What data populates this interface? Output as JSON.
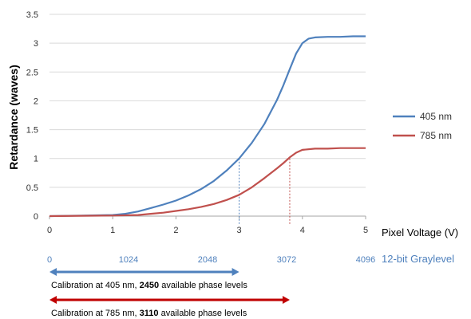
{
  "chart_data": {
    "type": "line",
    "xlabel": "Pixel Voltage (V)",
    "ylabel": "Retardance (waves)",
    "xlim": [
      0,
      5
    ],
    "ylim": [
      0,
      3.5
    ],
    "x_ticks": [
      "0",
      "1",
      "2",
      "3",
      "4",
      "5"
    ],
    "y_ticks": [
      "0",
      "0.5",
      "1",
      "1.5",
      "2",
      "2.5",
      "3",
      "3.5"
    ],
    "grid": "horizontal",
    "legend_position": "right",
    "series": [
      {
        "name": "405 nm",
        "color": "#4f81bd",
        "x": [
          0,
          0.5,
          1.0,
          1.2,
          1.4,
          1.6,
          1.8,
          2.0,
          2.2,
          2.4,
          2.6,
          2.8,
          3.0,
          3.2,
          3.4,
          3.6,
          3.7,
          3.8,
          3.9,
          4.0,
          4.1,
          4.2,
          4.4,
          4.6,
          4.8,
          5.0
        ],
        "y": [
          0,
          0.01,
          0.02,
          0.04,
          0.08,
          0.14,
          0.2,
          0.27,
          0.36,
          0.47,
          0.61,
          0.79,
          1.0,
          1.27,
          1.6,
          2.02,
          2.27,
          2.55,
          2.82,
          3.0,
          3.08,
          3.1,
          3.11,
          3.11,
          3.12,
          3.12
        ]
      },
      {
        "name": "785 nm",
        "color": "#c0504d",
        "x": [
          0,
          0.5,
          1.0,
          1.4,
          1.6,
          1.8,
          2.0,
          2.2,
          2.4,
          2.6,
          2.8,
          3.0,
          3.2,
          3.4,
          3.6,
          3.7,
          3.8,
          3.9,
          4.0,
          4.2,
          4.4,
          4.6,
          4.8,
          5.0
        ],
        "y": [
          0,
          0.005,
          0.01,
          0.02,
          0.04,
          0.06,
          0.09,
          0.12,
          0.16,
          0.21,
          0.28,
          0.37,
          0.5,
          0.66,
          0.83,
          0.92,
          1.02,
          1.1,
          1.15,
          1.17,
          1.17,
          1.18,
          1.18,
          1.18
        ]
      }
    ],
    "markers": [
      {
        "series": "405 nm",
        "x": 3.0,
        "y": 1.0
      },
      {
        "series": "785 nm",
        "x": 3.8,
        "y": 1.0
      }
    ],
    "secondary_axis": {
      "title": "12-bit Graylevel",
      "ticks": [
        {
          "label": "0",
          "value": 0
        },
        {
          "label": "1024",
          "value": 1024
        },
        {
          "label": "2048",
          "value": 2048
        },
        {
          "label": "3072",
          "value": 3072
        },
        {
          "label": "4096",
          "value": 4096
        }
      ]
    },
    "annotations": [
      {
        "color": "#4f81bd",
        "x_from": 0,
        "x_to": 3.0,
        "parts": [
          "Calibration  at 405 nm, ",
          "2450",
          " available phase levels"
        ]
      },
      {
        "color": "#c00000",
        "x_from": 0,
        "x_to": 3.8,
        "parts": [
          "Calibration at 785 nm, ",
          "3110",
          " available phase levels"
        ]
      }
    ]
  }
}
